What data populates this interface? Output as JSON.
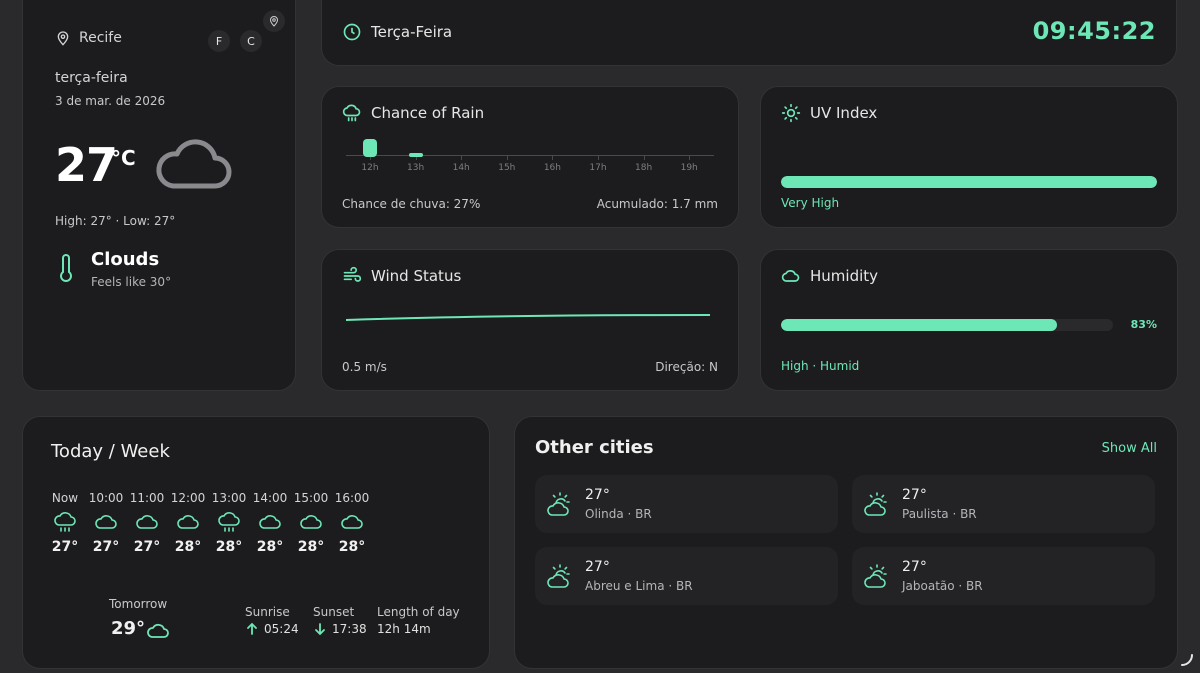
{
  "location": {
    "city": "Recife",
    "day": "terça-feira",
    "date": "3 de mar. de 2026",
    "temp": "27",
    "unit": "°C",
    "high_low": "High: 27° · Low: 27°",
    "condition": "Clouds",
    "feels_like": "Feels like 30°",
    "unit_f": "F",
    "unit_c": "C"
  },
  "topbar": {
    "weekday": "Terça-Feira",
    "time": "09:45:22"
  },
  "rain": {
    "title": "Chance of Rain",
    "hours": [
      "12h",
      "13h",
      "14h",
      "15h",
      "16h",
      "17h",
      "18h",
      "19h"
    ],
    "values_mm": [
      1.5,
      0.2,
      0,
      0,
      0,
      0,
      0,
      0
    ],
    "chance_text": "Chance de chuva: 27%",
    "accum_text": "Acumulado: 1.7 mm"
  },
  "uv": {
    "title": "UV Index",
    "level": "Very High",
    "fill": 1.0
  },
  "wind": {
    "title": "Wind Status",
    "speed": "0.5 m/s",
    "direction": "Direção: N"
  },
  "humidity": {
    "title": "Humidity",
    "value": 83,
    "value_text": "83%",
    "level": "High · Humid"
  },
  "week": {
    "title": "Today / Week",
    "hours": [
      {
        "time": "Now",
        "icon": "rain-cloud-icon",
        "temp": "27°"
      },
      {
        "time": "10:00",
        "icon": "cloud-icon",
        "temp": "27°"
      },
      {
        "time": "11:00",
        "icon": "cloud-icon",
        "temp": "27°"
      },
      {
        "time": "12:00",
        "icon": "cloud-icon",
        "temp": "28°"
      },
      {
        "time": "13:00",
        "icon": "rain-cloud-icon",
        "temp": "28°"
      },
      {
        "time": "14:00",
        "icon": "cloud-icon",
        "temp": "28°"
      },
      {
        "time": "15:00",
        "icon": "cloud-icon",
        "temp": "28°"
      },
      {
        "time": "16:00",
        "icon": "cloud-icon",
        "temp": "28°"
      }
    ],
    "tomorrow_label": "Tomorrow",
    "tomorrow_temp": "29°",
    "sunrise_label": "Sunrise",
    "sunrise": "05:24",
    "sunset_label": "Sunset",
    "sunset": "17:38",
    "day_length_label": "Length of day",
    "day_length": "12h 14m"
  },
  "cities": {
    "title": "Other cities",
    "show_all": "Show All",
    "items": [
      {
        "temp": "27°",
        "name": "Olinda · BR"
      },
      {
        "temp": "27°",
        "name": "Paulista · BR"
      },
      {
        "temp": "27°",
        "name": "Abreu e Lima · BR"
      },
      {
        "temp": "27°",
        "name": "Jaboatão · BR"
      }
    ]
  },
  "colors": {
    "accent": "#6ee7b7",
    "card": "#1c1c1e",
    "background": "#2a2a2c"
  }
}
